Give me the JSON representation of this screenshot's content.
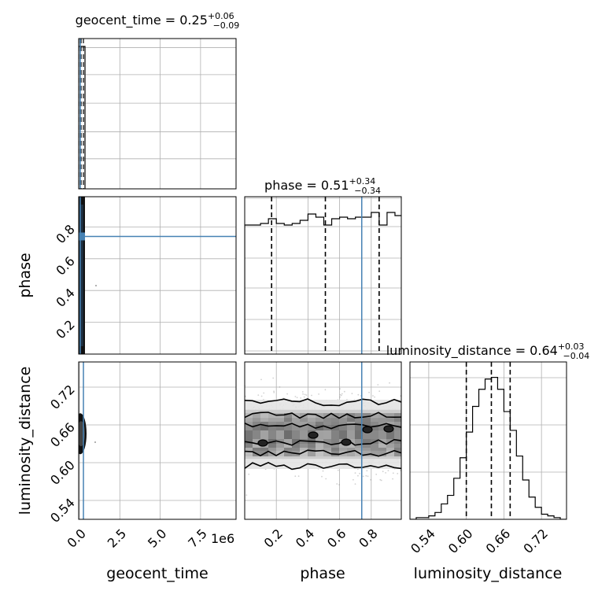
{
  "chart_data": {
    "type": "corner",
    "parameters": [
      "geocent_time",
      "phase",
      "luminosity_distance"
    ],
    "titles": {
      "geocent_time": {
        "name": "geocent_time",
        "median": "0.25",
        "plus": "+0.06",
        "minus": "−0.09"
      },
      "phase": {
        "name": "phase",
        "median": "0.51",
        "plus": "+0.34",
        "minus": "−0.34"
      },
      "luminosity_distance": {
        "name": "luminosity_distance",
        "median": "0.64",
        "plus": "+0.03",
        "minus": "−0.04"
      }
    },
    "axis_labels": {
      "x": [
        "geocent_time",
        "phase",
        "luminosity_distance"
      ],
      "y": [
        "phase",
        "luminosity_distance"
      ]
    },
    "offset_label": "1e6",
    "ranges": {
      "geocent_time": [
        -50000,
        9700000
      ],
      "phase": [
        0.0,
        0.99
      ],
      "luminosity_distance": [
        0.51,
        0.76
      ]
    },
    "ticks": {
      "geocent_time": [
        "0.0",
        "2.5",
        "5.0",
        "7.5"
      ],
      "geocent_time_values": [
        0,
        2500000,
        5000000,
        7500000
      ],
      "phase": [
        "0.2",
        "0.4",
        "0.6",
        "0.8"
      ],
      "phase_values": [
        0.2,
        0.4,
        0.6,
        0.8
      ],
      "luminosity_distance": [
        "0.54",
        "0.60",
        "0.66",
        "0.72"
      ],
      "luminosity_distance_values": [
        0.54,
        0.6,
        0.66,
        0.72
      ]
    },
    "truths": {
      "geocent_time": 0,
      "phase": 0.74,
      "luminosity_distance": 0.646
    },
    "quantiles": {
      "geocent_time": [
        0.16,
        0.25,
        0.31
      ],
      "phase": [
        0.17,
        0.51,
        0.85
      ],
      "luminosity_distance": [
        0.6,
        0.64,
        0.67
      ]
    },
    "hist_phase": {
      "bin_edges": [
        0.0,
        0.05,
        0.1,
        0.15,
        0.2,
        0.25,
        0.3,
        0.35,
        0.4,
        0.45,
        0.5,
        0.55,
        0.6,
        0.65,
        0.7,
        0.75,
        0.8,
        0.85,
        0.9,
        0.95,
        1.0
      ],
      "counts": [
        0.82,
        0.82,
        0.83,
        0.86,
        0.83,
        0.82,
        0.83,
        0.85,
        0.89,
        0.87,
        0.82,
        0.86,
        0.87,
        0.86,
        0.87,
        0.87,
        0.9,
        0.82,
        0.9,
        0.88
      ]
    },
    "hist_luminosity_distance": {
      "bin_edges": [
        0.51,
        0.52,
        0.53,
        0.54,
        0.55,
        0.56,
        0.57,
        0.58,
        0.59,
        0.6,
        0.61,
        0.62,
        0.63,
        0.64,
        0.65,
        0.66,
        0.67,
        0.68,
        0.69,
        0.7,
        0.71,
        0.72,
        0.73,
        0.74,
        0.75,
        0.76
      ],
      "counts": [
        0.0,
        0.01,
        0.01,
        0.02,
        0.04,
        0.09,
        0.14,
        0.24,
        0.36,
        0.51,
        0.66,
        0.76,
        0.82,
        0.83,
        0.76,
        0.63,
        0.52,
        0.37,
        0.23,
        0.13,
        0.07,
        0.03,
        0.02,
        0.01,
        0.0
      ]
    },
    "hist_geocent_time": {
      "spike_at": 0,
      "height": 1.0
    },
    "grid": true
  }
}
